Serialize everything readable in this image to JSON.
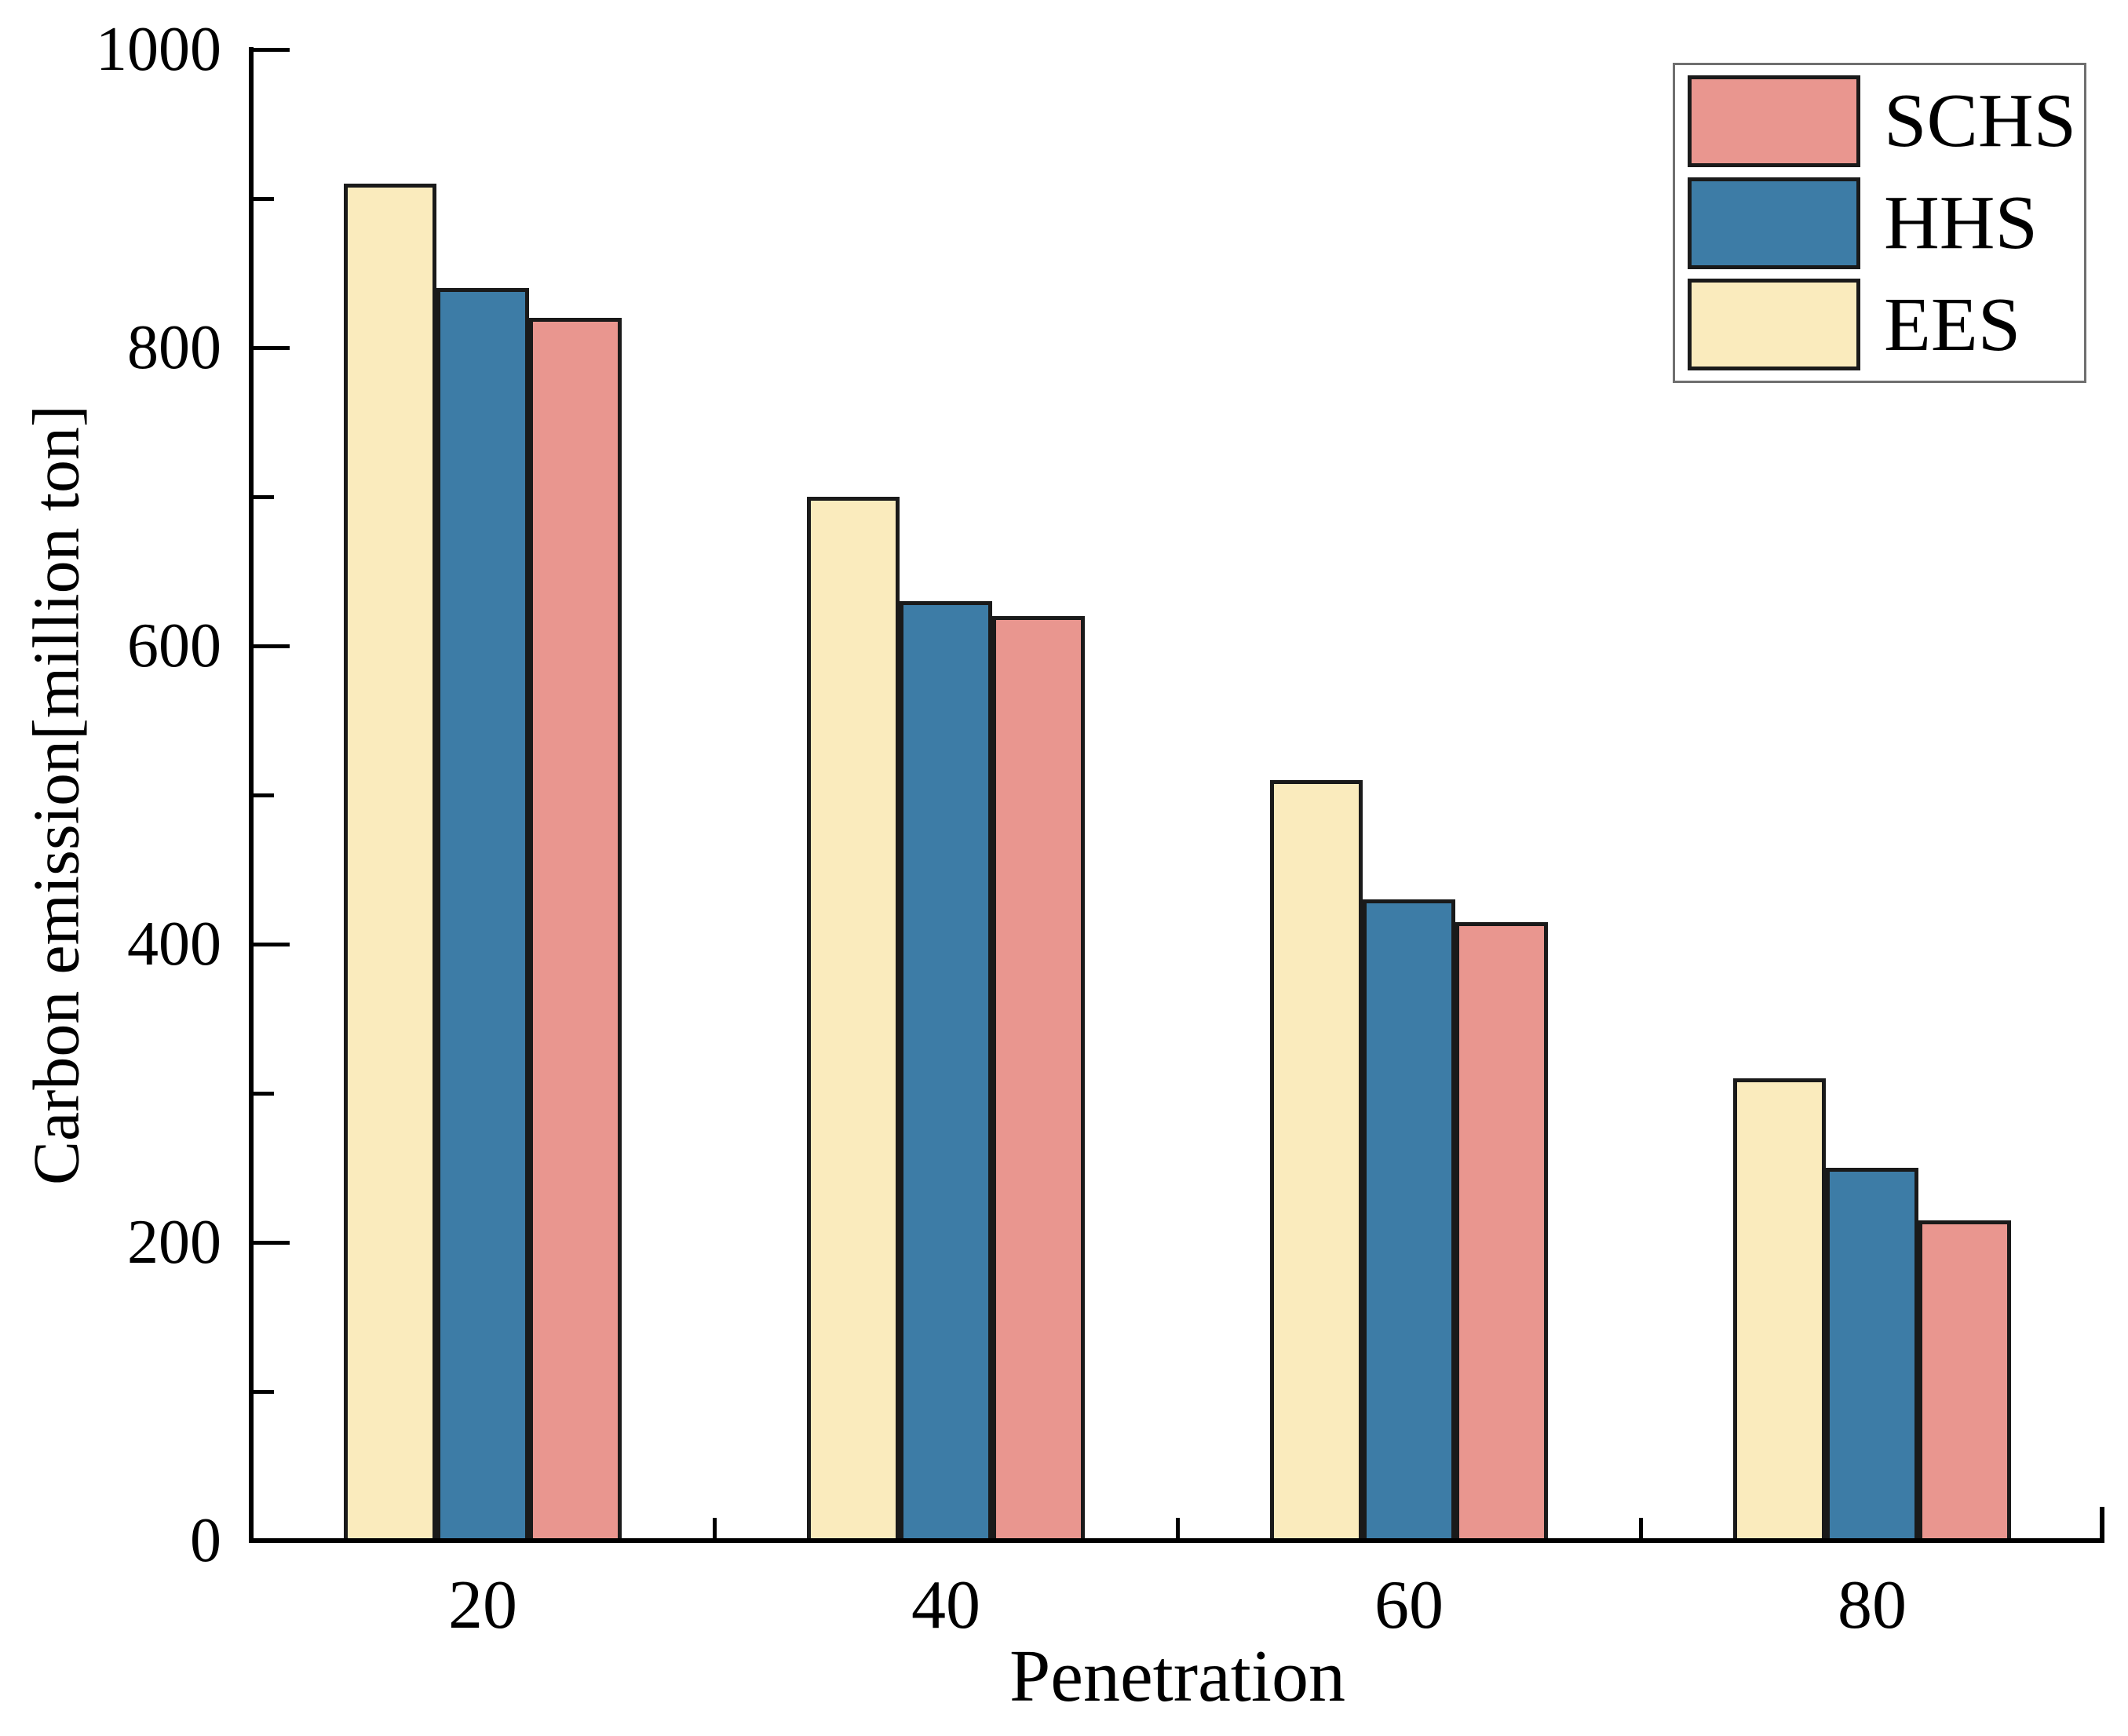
{
  "chart_data": {
    "type": "bar",
    "title": "",
    "xlabel": "Penetration",
    "ylabel": "Carbon emission[million ton]",
    "categories": [
      "20",
      "40",
      "60",
      "80"
    ],
    "series": [
      {
        "name": "EES",
        "color": "#FAEBBD",
        "values": [
          910,
          700,
          510,
          310
        ]
      },
      {
        "name": "HHS",
        "color": "#3D7CA6",
        "values": [
          840,
          630,
          430,
          250
        ]
      },
      {
        "name": "SCHS",
        "color": "#E9968F",
        "values": [
          820,
          620,
          415,
          215
        ]
      }
    ],
    "legend": {
      "position": "top-right",
      "order": [
        "SCHS",
        "HHS",
        "EES"
      ]
    },
    "xlim": [
      10,
      90
    ],
    "ylim": [
      0,
      1000
    ],
    "y_major_ticks": [
      0,
      200,
      400,
      600,
      800,
      1000
    ],
    "y_minor_ticks": [
      100,
      300,
      500,
      700,
      900
    ],
    "x_minor_ticks": [
      30,
      50,
      70
    ],
    "grid": false,
    "bar_outline_color": "#1a1a1a",
    "axis_color": "#000000"
  }
}
